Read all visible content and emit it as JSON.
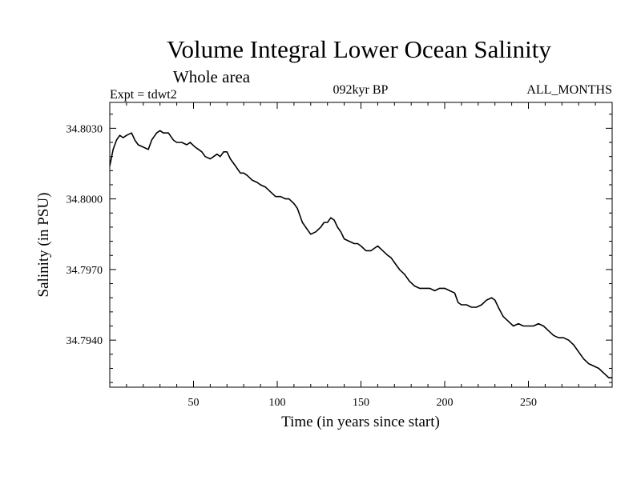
{
  "chart_data": {
    "type": "line",
    "title": "Volume Integral Lower Ocean Salinity",
    "subtitle": "Whole area",
    "header_left": "Expt = tdwt2",
    "header_center": "092kyr BP",
    "header_right": "ALL_MONTHS",
    "xlabel": "Time (in years since start)",
    "ylabel": "Salinity (in PSU)",
    "xlim": [
      0,
      300
    ],
    "ylim": [
      34.792,
      34.8041
    ],
    "x_ticks": [
      50,
      100,
      150,
      200,
      250
    ],
    "x_tick_labels": [
      "50",
      "100",
      "150",
      "200",
      "250"
    ],
    "y_ticks": [
      34.794,
      34.797,
      34.8,
      34.803
    ],
    "y_tick_labels": [
      "34.7940",
      "34.7970",
      "34.8000",
      "34.8030"
    ],
    "grid": false,
    "series": [
      {
        "name": "Salinity",
        "x": [
          0,
          2,
          4,
          6,
          8,
          10,
          13,
          15,
          17,
          20,
          23,
          25,
          28,
          30,
          32,
          35,
          38,
          40,
          43,
          46,
          48,
          51,
          53,
          55,
          57,
          60,
          62,
          64,
          66,
          68,
          70,
          72,
          75,
          78,
          80,
          82,
          85,
          88,
          90,
          93,
          96,
          99,
          102,
          105,
          107,
          110,
          112,
          115,
          118,
          120,
          123,
          126,
          128,
          130,
          132,
          134,
          136,
          138,
          140,
          143,
          146,
          148,
          150,
          153,
          156,
          158,
          160,
          163,
          166,
          168,
          170,
          173,
          176,
          179,
          182,
          185,
          188,
          191,
          194,
          197,
          200,
          203,
          206,
          208,
          210,
          213,
          216,
          219,
          222,
          225,
          228,
          230,
          232,
          235,
          238,
          241,
          244,
          247,
          250,
          253,
          256,
          259,
          262,
          265,
          268,
          271,
          274,
          277,
          280,
          283,
          286,
          289,
          292,
          295,
          298,
          300
        ],
        "values": [
          34.8014,
          34.8021,
          34.8025,
          34.8027,
          34.8026,
          34.8027,
          34.8028,
          34.8025,
          34.8023,
          34.8022,
          34.8021,
          34.8025,
          34.8028,
          34.8029,
          34.8028,
          34.8028,
          34.8025,
          34.8024,
          34.8024,
          34.8023,
          34.8024,
          34.8022,
          34.8021,
          34.802,
          34.8018,
          34.8017,
          34.8018,
          34.8019,
          34.8018,
          34.802,
          34.802,
          34.8017,
          34.8014,
          34.8011,
          34.8011,
          34.801,
          34.8008,
          34.8007,
          34.8006,
          34.8005,
          34.8003,
          34.8001,
          34.8001,
          34.8,
          34.8,
          34.7998,
          34.7996,
          34.799,
          34.7987,
          34.7985,
          34.7986,
          34.7988,
          34.799,
          34.799,
          34.7992,
          34.7991,
          34.7988,
          34.7986,
          34.7983,
          34.7982,
          34.7981,
          34.7981,
          34.798,
          34.7978,
          34.7978,
          34.7979,
          34.798,
          34.7978,
          34.7976,
          34.7975,
          34.7973,
          34.797,
          34.7968,
          34.7965,
          34.7963,
          34.7962,
          34.7962,
          34.7962,
          34.7961,
          34.7962,
          34.7962,
          34.7961,
          34.796,
          34.7956,
          34.7955,
          34.7955,
          34.7954,
          34.7954,
          34.7955,
          34.7957,
          34.7958,
          34.7957,
          34.7954,
          34.795,
          34.7948,
          34.7946,
          34.7947,
          34.7946,
          34.7946,
          34.7946,
          34.7947,
          34.7946,
          34.7944,
          34.7942,
          34.7941,
          34.7941,
          34.794,
          34.7938,
          34.7935,
          34.7932,
          34.793,
          34.7929,
          34.7928,
          34.7926,
          34.7924,
          34.7924
        ]
      }
    ]
  },
  "colors": {
    "background": "#ffffff",
    "line": "#000000",
    "axes": "#000000"
  }
}
